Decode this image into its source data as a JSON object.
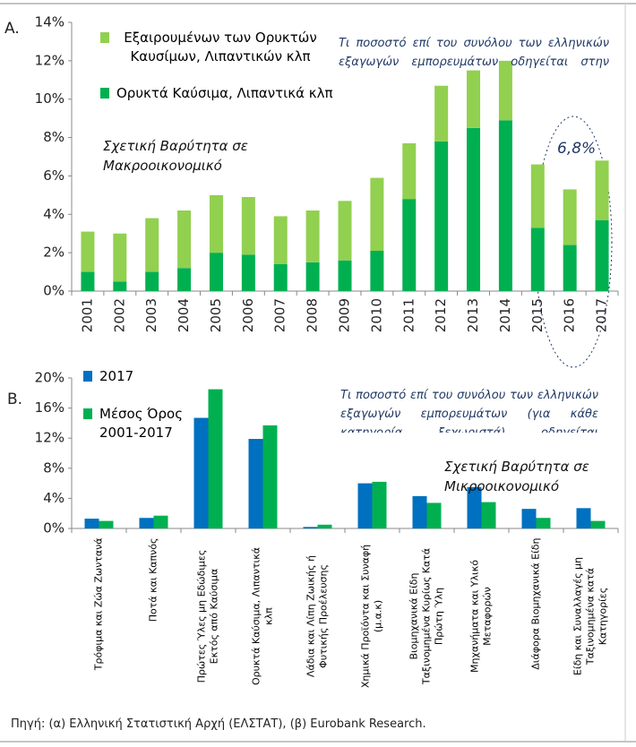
{
  "chart_data": [
    {
      "type": "bar",
      "stacked": true,
      "panel": "A.",
      "categories": [
        "2001",
        "2002",
        "2003",
        "2004",
        "2005",
        "2006",
        "2007",
        "2008",
        "2009",
        "2010",
        "2011",
        "2012",
        "2013",
        "2014",
        "2015",
        "2016",
        "2017"
      ],
      "series": [
        {
          "name": "Ορυκτά Καύσιμα, Λιπαντικά κλπ",
          "color": "#00b050",
          "values": [
            1.0,
            0.5,
            1.0,
            1.2,
            2.0,
            1.9,
            1.4,
            1.5,
            1.6,
            2.1,
            4.8,
            7.8,
            8.5,
            8.9,
            3.3,
            2.4,
            3.7
          ]
        },
        {
          "name": "Εξαιρουμένων των Ορυκτών Καυσίμων, Λιπαντικών κλπ",
          "color": "#92d050",
          "values": [
            2.1,
            2.5,
            2.8,
            3.0,
            3.0,
            3.0,
            2.5,
            2.7,
            3.1,
            3.8,
            2.9,
            2.9,
            3.0,
            3.1,
            3.3,
            2.9,
            3.1
          ]
        }
      ],
      "ylim": [
        0,
        14
      ],
      "yticks": [
        {
          "value": 0,
          "label": "0%"
        },
        {
          "value": 2,
          "label": "2%"
        },
        {
          "value": 4,
          "label": "4%"
        },
        {
          "value": 6,
          "label": "6%"
        },
        {
          "value": 8,
          "label": "8%"
        },
        {
          "value": 10,
          "label": "10%"
        },
        {
          "value": 12,
          "label": "12%"
        },
        {
          "value": 14,
          "label": "14%"
        }
      ],
      "annotations": [
        "Τι ποσοστό επί του συνόλου των ελληνικών εξαγωγών εμπορευμάτων οδηγείται στην",
        "Σχετική Βαρύτητα σε Μακροοικονομικό",
        "6,8%"
      ]
    },
    {
      "type": "bar",
      "stacked": false,
      "panel": "B.",
      "categories": [
        "Τρόφιμα και Ζώα Ζωντανά",
        "Ποτά και Καπνός",
        "Πρώτες Ύλες μη Εδώδιμες Εκτός από Καύσιμα",
        "Ορυκτά Καύσιμα, Λιπαντικά κλπ",
        "Λάδια και Λίπη Ζωικής ή Φυτικής Προέλευσης",
        "Χημικά Προϊόντα και Συναφή (μ.α.κ)",
        "Βιομηχανικά Είδη Ταξινομημένα Κυρίως Κατά Πρώτη Ύλη",
        "Μηχανήματα και Υλικό Μεταφορών",
        "Διάφορα Βιομηχανικά Είδη",
        "Είδη και Συναλλαγές μη Ταξινομημένα κατά Κατηγορίες"
      ],
      "series": [
        {
          "name": "2017",
          "color": "#0070c0",
          "values": [
            1.3,
            1.4,
            14.7,
            11.9,
            0.2,
            6.0,
            4.3,
            5.5,
            2.6,
            2.7
          ]
        },
        {
          "name": "Μέσος Όρος 2001-2017",
          "color": "#00b050",
          "values": [
            1.0,
            1.7,
            18.5,
            13.7,
            0.5,
            6.2,
            3.4,
            3.5,
            1.4,
            1.0
          ]
        }
      ],
      "ylim": [
        0,
        20
      ],
      "yticks": [
        {
          "value": 0,
          "label": "0%"
        },
        {
          "value": 4,
          "label": "4%"
        },
        {
          "value": 8,
          "label": "8%"
        },
        {
          "value": 12,
          "label": "12%"
        },
        {
          "value": 16,
          "label": "16%"
        },
        {
          "value": 20,
          "label": "20%"
        }
      ],
      "annotations": [
        "Τι ποσοστό επί του συνόλου των ελληνικών εξαγωγών εμπορευμάτων (για κάθε κατηγορία ξεχωριστά) οδηγείται",
        "Σχετική Βαρύτητα σε Μικροοικονομικό"
      ]
    }
  ],
  "source": "Πηγή: (α) Ελληνική Στατιστική Αρχή (ΕΛΣΤΑΤ), (β) Eurobank Research."
}
